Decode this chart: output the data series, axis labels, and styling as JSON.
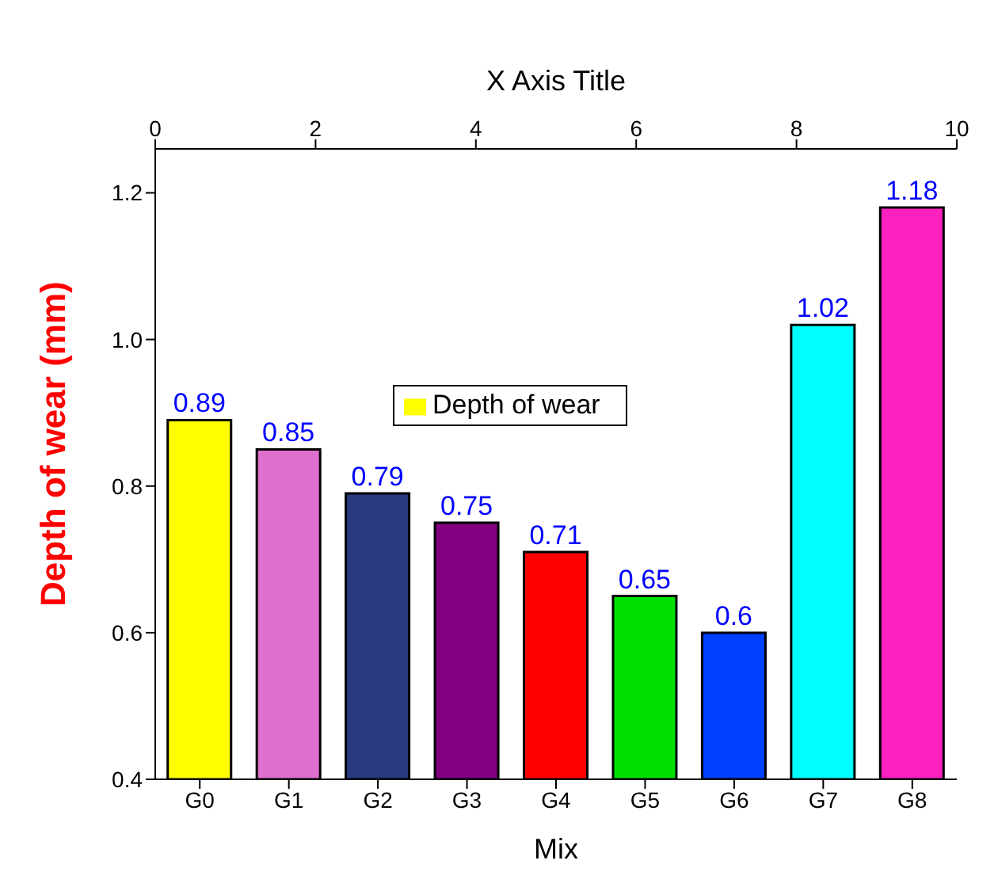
{
  "chart_data": {
    "type": "bar",
    "xlabel": "Mix",
    "ylabel": "Depth of wear (mm)",
    "x2label": "X Axis Title",
    "x2lim": [
      0,
      10
    ],
    "x2ticks": [
      0,
      2,
      4,
      6,
      8,
      10
    ],
    "categories": [
      "G0",
      "G1",
      "G2",
      "G3",
      "G4",
      "G5",
      "G6",
      "G7",
      "G8"
    ],
    "series": [
      {
        "name": "Depth of wear",
        "color": "#ffff00",
        "values": [
          0.89,
          0.85,
          0.79,
          0.75,
          0.71,
          0.65,
          0.6,
          1.02,
          1.18
        ],
        "colors": [
          "#ffff00",
          "#e070d0",
          "#2a3a80",
          "#800080",
          "#ff0000",
          "#00e000",
          "#0040ff",
          "#00ffff",
          "#ff20c0"
        ]
      }
    ],
    "ylim": [
      0.4,
      1.26
    ],
    "yticks": [
      0.4,
      0.6,
      0.8,
      {
        "value": 1,
        "label": "1.0"
      },
      1.2
    ],
    "data_labels": true,
    "legend": "top",
    "grid": false
  }
}
